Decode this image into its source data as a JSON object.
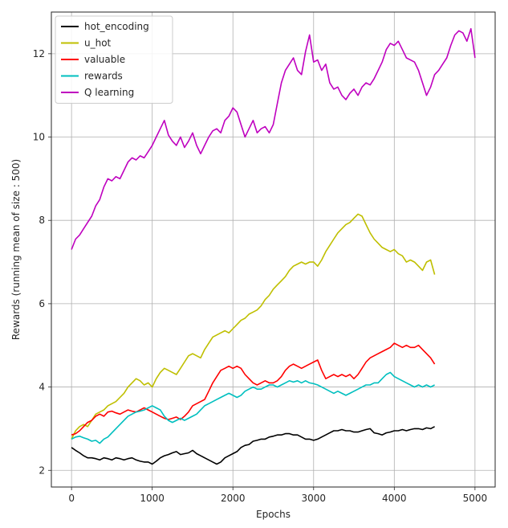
{
  "chart_data": {
    "type": "line",
    "title": "",
    "xlabel": "Epochs",
    "ylabel": "Rewards (running mean of size : 500)",
    "xlim": [
      -250,
      5250
    ],
    "ylim": [
      1.6,
      13.0
    ],
    "xticks": [
      0,
      1000,
      2000,
      3000,
      4000,
      5000
    ],
    "yticks": [
      2,
      4,
      6,
      8,
      10,
      12
    ],
    "grid": true,
    "legend_position": "top-left",
    "series": [
      {
        "name": "hot_encoding",
        "color": "#000000",
        "x": [
          0,
          50,
          100,
          150,
          200,
          250,
          300,
          350,
          400,
          450,
          500,
          550,
          600,
          650,
          700,
          750,
          800,
          850,
          900,
          950,
          1000,
          1050,
          1100,
          1150,
          1200,
          1250,
          1300,
          1350,
          1400,
          1450,
          1500,
          1550,
          1600,
          1650,
          1700,
          1750,
          1800,
          1850,
          1900,
          1950,
          2000,
          2050,
          2100,
          2150,
          2200,
          2250,
          2300,
          2350,
          2400,
          2450,
          2500,
          2550,
          2600,
          2650,
          2700,
          2750,
          2800,
          2850,
          2900,
          2950,
          3000,
          3050,
          3100,
          3150,
          3200,
          3250,
          3300,
          3350,
          3400,
          3450,
          3500,
          3550,
          3600,
          3650,
          3700,
          3750,
          3800,
          3850,
          3900,
          3950,
          4000,
          4050,
          4100,
          4150,
          4200,
          4250,
          4300,
          4350,
          4400,
          4450,
          4500
        ],
        "y": [
          2.55,
          2.48,
          2.42,
          2.35,
          2.3,
          2.3,
          2.28,
          2.25,
          2.3,
          2.28,
          2.25,
          2.3,
          2.28,
          2.25,
          2.28,
          2.3,
          2.25,
          2.22,
          2.2,
          2.2,
          2.15,
          2.22,
          2.3,
          2.35,
          2.38,
          2.42,
          2.45,
          2.38,
          2.4,
          2.42,
          2.48,
          2.4,
          2.35,
          2.3,
          2.25,
          2.2,
          2.15,
          2.2,
          2.3,
          2.35,
          2.4,
          2.45,
          2.55,
          2.6,
          2.62,
          2.7,
          2.72,
          2.75,
          2.75,
          2.8,
          2.82,
          2.85,
          2.85,
          2.88,
          2.88,
          2.85,
          2.85,
          2.8,
          2.75,
          2.75,
          2.72,
          2.75,
          2.8,
          2.85,
          2.9,
          2.95,
          2.95,
          2.98,
          2.95,
          2.95,
          2.92,
          2.92,
          2.95,
          2.98,
          3.0,
          2.9,
          2.88,
          2.85,
          2.9,
          2.92,
          2.95,
          2.95,
          2.98,
          2.95,
          2.98,
          3.0,
          3.0,
          2.98,
          3.02,
          3.0,
          3.05
        ]
      },
      {
        "name": "u_hot",
        "color": "#bfbf00",
        "x": [
          0,
          50,
          100,
          150,
          200,
          250,
          300,
          350,
          400,
          450,
          500,
          550,
          600,
          650,
          700,
          750,
          800,
          850,
          900,
          950,
          1000,
          1050,
          1100,
          1150,
          1200,
          1250,
          1300,
          1350,
          1400,
          1450,
          1500,
          1550,
          1600,
          1650,
          1700,
          1750,
          1800,
          1850,
          1900,
          1950,
          2000,
          2050,
          2100,
          2150,
          2200,
          2250,
          2300,
          2350,
          2400,
          2450,
          2500,
          2550,
          2600,
          2650,
          2700,
          2750,
          2800,
          2850,
          2900,
          2950,
          3000,
          3050,
          3100,
          3150,
          3200,
          3250,
          3300,
          3350,
          3400,
          3450,
          3500,
          3550,
          3600,
          3650,
          3700,
          3750,
          3800,
          3850,
          3900,
          3950,
          4000,
          4050,
          4100,
          4150,
          4200,
          4250,
          4300,
          4350,
          4400,
          4450,
          4500
        ],
        "y": [
          2.75,
          2.95,
          3.05,
          3.1,
          3.05,
          3.2,
          3.35,
          3.4,
          3.45,
          3.55,
          3.6,
          3.65,
          3.75,
          3.85,
          4.0,
          4.1,
          4.2,
          4.15,
          4.05,
          4.1,
          4.0,
          4.2,
          4.35,
          4.45,
          4.4,
          4.35,
          4.3,
          4.45,
          4.6,
          4.75,
          4.8,
          4.75,
          4.7,
          4.9,
          5.05,
          5.2,
          5.25,
          5.3,
          5.35,
          5.3,
          5.4,
          5.5,
          5.6,
          5.65,
          5.75,
          5.8,
          5.85,
          5.95,
          6.1,
          6.2,
          6.35,
          6.45,
          6.55,
          6.65,
          6.8,
          6.9,
          6.95,
          7.0,
          6.95,
          7.0,
          7.0,
          6.9,
          7.05,
          7.25,
          7.4,
          7.55,
          7.7,
          7.8,
          7.9,
          7.95,
          8.05,
          8.15,
          8.1,
          7.9,
          7.7,
          7.55,
          7.45,
          7.35,
          7.3,
          7.25,
          7.3,
          7.2,
          7.15,
          7.0,
          7.05,
          7.0,
          6.9,
          6.8,
          7.0,
          7.05,
          6.7
        ]
      },
      {
        "name": "valuable",
        "color": "#ff0000",
        "x": [
          0,
          50,
          100,
          150,
          200,
          250,
          300,
          350,
          400,
          450,
          500,
          550,
          600,
          650,
          700,
          750,
          800,
          850,
          900,
          950,
          1000,
          1050,
          1100,
          1150,
          1200,
          1250,
          1300,
          1350,
          1400,
          1450,
          1500,
          1550,
          1600,
          1650,
          1700,
          1750,
          1800,
          1850,
          1900,
          1950,
          2000,
          2050,
          2100,
          2150,
          2200,
          2250,
          2300,
          2350,
          2400,
          2450,
          2500,
          2550,
          2600,
          2650,
          2700,
          2750,
          2800,
          2850,
          2900,
          2950,
          3000,
          3050,
          3100,
          3150,
          3200,
          3250,
          3300,
          3350,
          3400,
          3450,
          3500,
          3550,
          3600,
          3650,
          3700,
          3750,
          3800,
          3850,
          3900,
          3950,
          4000,
          4050,
          4100,
          4150,
          4200,
          4250,
          4300,
          4350,
          4400,
          4450,
          4500
        ],
        "y": [
          2.85,
          2.88,
          2.95,
          3.05,
          3.15,
          3.2,
          3.3,
          3.35,
          3.3,
          3.4,
          3.42,
          3.38,
          3.35,
          3.4,
          3.45,
          3.42,
          3.4,
          3.45,
          3.5,
          3.45,
          3.4,
          3.35,
          3.3,
          3.25,
          3.22,
          3.25,
          3.28,
          3.22,
          3.3,
          3.4,
          3.55,
          3.6,
          3.65,
          3.7,
          3.9,
          4.1,
          4.25,
          4.4,
          4.45,
          4.5,
          4.45,
          4.5,
          4.45,
          4.3,
          4.2,
          4.1,
          4.05,
          4.1,
          4.15,
          4.1,
          4.1,
          4.15,
          4.25,
          4.4,
          4.5,
          4.55,
          4.5,
          4.45,
          4.5,
          4.55,
          4.6,
          4.65,
          4.4,
          4.2,
          4.25,
          4.3,
          4.25,
          4.3,
          4.25,
          4.3,
          4.2,
          4.3,
          4.45,
          4.6,
          4.7,
          4.75,
          4.8,
          4.85,
          4.9,
          4.95,
          5.05,
          5.0,
          4.95,
          5.0,
          4.95,
          4.95,
          5.0,
          4.9,
          4.8,
          4.7,
          4.55
        ]
      },
      {
        "name": "rewards",
        "color": "#00bfbf",
        "x": [
          0,
          50,
          100,
          150,
          200,
          250,
          300,
          350,
          400,
          450,
          500,
          550,
          600,
          650,
          700,
          750,
          800,
          850,
          900,
          950,
          1000,
          1050,
          1100,
          1150,
          1200,
          1250,
          1300,
          1350,
          1400,
          1450,
          1500,
          1550,
          1600,
          1650,
          1700,
          1750,
          1800,
          1850,
          1900,
          1950,
          2000,
          2050,
          2100,
          2150,
          2200,
          2250,
          2300,
          2350,
          2400,
          2450,
          2500,
          2550,
          2600,
          2650,
          2700,
          2750,
          2800,
          2850,
          2900,
          2950,
          3000,
          3050,
          3100,
          3150,
          3200,
          3250,
          3300,
          3350,
          3400,
          3450,
          3500,
          3550,
          3600,
          3650,
          3700,
          3750,
          3800,
          3850,
          3900,
          3950,
          4000,
          4050,
          4100,
          4150,
          4200,
          4250,
          4300,
          4350,
          4400,
          4450,
          4500
        ],
        "y": [
          2.75,
          2.8,
          2.82,
          2.78,
          2.75,
          2.7,
          2.72,
          2.65,
          2.75,
          2.8,
          2.9,
          3.0,
          3.1,
          3.2,
          3.3,
          3.35,
          3.4,
          3.42,
          3.45,
          3.5,
          3.55,
          3.5,
          3.45,
          3.3,
          3.2,
          3.15,
          3.2,
          3.25,
          3.2,
          3.25,
          3.3,
          3.35,
          3.45,
          3.55,
          3.6,
          3.65,
          3.7,
          3.75,
          3.8,
          3.85,
          3.8,
          3.75,
          3.8,
          3.9,
          3.95,
          4.0,
          3.95,
          3.95,
          4.0,
          4.05,
          4.05,
          4.0,
          4.05,
          4.1,
          4.15,
          4.12,
          4.15,
          4.1,
          4.15,
          4.1,
          4.08,
          4.05,
          4.0,
          3.95,
          3.9,
          3.85,
          3.9,
          3.85,
          3.8,
          3.85,
          3.9,
          3.95,
          4.0,
          4.05,
          4.05,
          4.1,
          4.1,
          4.2,
          4.3,
          4.35,
          4.25,
          4.2,
          4.15,
          4.1,
          4.05,
          4.0,
          4.05,
          4.0,
          4.05,
          4.0,
          4.05
        ]
      },
      {
        "name": "Q learning",
        "color": "#bf00bf",
        "x": [
          0,
          50,
          100,
          150,
          200,
          250,
          300,
          350,
          400,
          450,
          500,
          550,
          600,
          650,
          700,
          750,
          800,
          850,
          900,
          950,
          1000,
          1050,
          1100,
          1150,
          1200,
          1250,
          1300,
          1350,
          1400,
          1450,
          1500,
          1550,
          1600,
          1650,
          1700,
          1750,
          1800,
          1850,
          1900,
          1950,
          2000,
          2050,
          2100,
          2150,
          2200,
          2250,
          2300,
          2350,
          2400,
          2450,
          2500,
          2550,
          2600,
          2650,
          2700,
          2750,
          2800,
          2850,
          2900,
          2950,
          3000,
          3050,
          3100,
          3150,
          3200,
          3250,
          3300,
          3350,
          3400,
          3450,
          3500,
          3550,
          3600,
          3650,
          3700,
          3750,
          3800,
          3850,
          3900,
          3950,
          4000,
          4050,
          4100,
          4150,
          4200,
          4250,
          4300,
          4350,
          4400,
          4450,
          4500,
          4550,
          4600,
          4650,
          4700,
          4750,
          4800,
          4850,
          4900,
          4950,
          5000
        ],
        "y": [
          7.3,
          7.55,
          7.65,
          7.8,
          7.95,
          8.1,
          8.35,
          8.5,
          8.8,
          9.0,
          8.95,
          9.05,
          9.0,
          9.2,
          9.4,
          9.5,
          9.45,
          9.55,
          9.5,
          9.65,
          9.8,
          10.0,
          10.2,
          10.4,
          10.05,
          9.9,
          9.8,
          10.0,
          9.75,
          9.9,
          10.1,
          9.8,
          9.6,
          9.8,
          10.0,
          10.15,
          10.2,
          10.1,
          10.4,
          10.5,
          10.7,
          10.6,
          10.3,
          10.0,
          10.2,
          10.4,
          10.1,
          10.2,
          10.25,
          10.1,
          10.3,
          10.8,
          11.3,
          11.6,
          11.75,
          11.9,
          11.6,
          11.5,
          12.05,
          12.45,
          11.8,
          11.85,
          11.6,
          11.75,
          11.3,
          11.15,
          11.2,
          11.0,
          10.9,
          11.05,
          11.15,
          11.0,
          11.2,
          11.3,
          11.25,
          11.4,
          11.6,
          11.8,
          12.1,
          12.25,
          12.2,
          12.3,
          12.1,
          11.9,
          11.85,
          11.8,
          11.6,
          11.3,
          11.0,
          11.2,
          11.5,
          11.6,
          11.75,
          11.9,
          12.2,
          12.45,
          12.55,
          12.5,
          12.3,
          12.6,
          11.9
        ]
      }
    ]
  }
}
